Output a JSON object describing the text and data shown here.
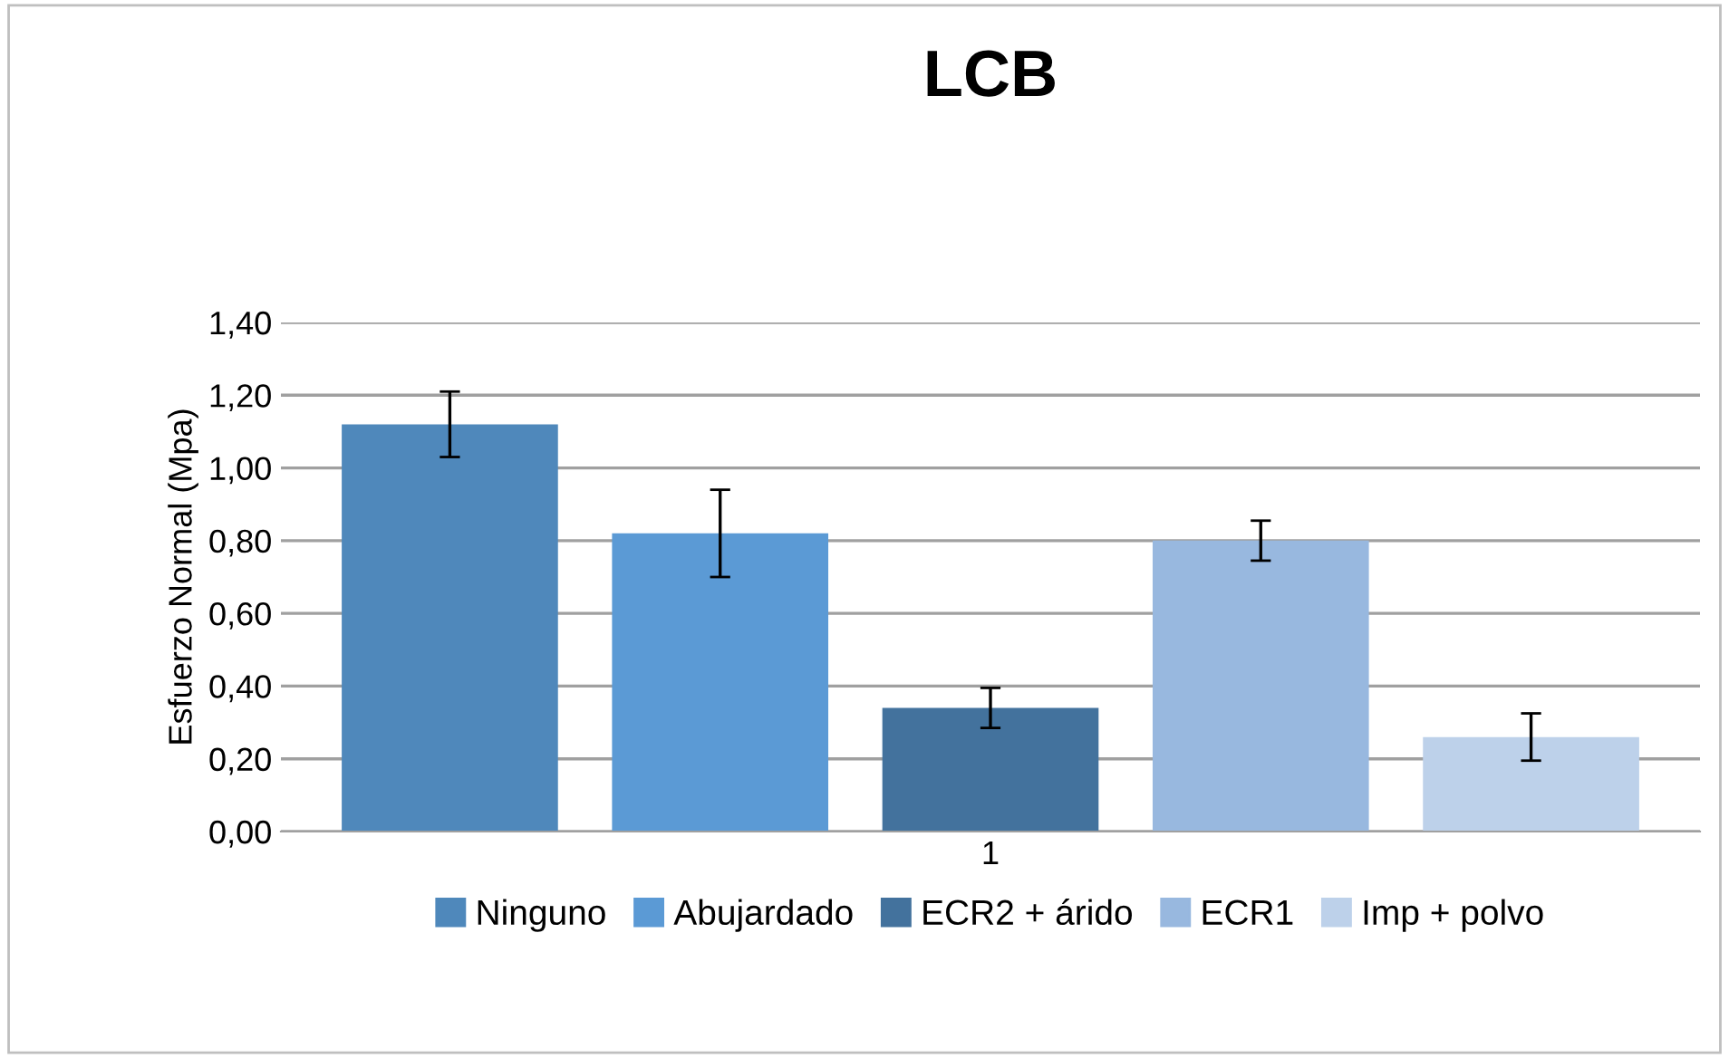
{
  "chart_data": {
    "type": "bar",
    "title": "LCB",
    "ylabel": "Esfuerzo Normal (Mpa)",
    "categories": [
      "1"
    ],
    "series": [
      {
        "name": "Ninguno",
        "color": "#4f88bb",
        "values": [
          1.12
        ],
        "errors": [
          0.09
        ]
      },
      {
        "name": "Abujardado",
        "color": "#5b9ad5",
        "values": [
          0.82
        ],
        "errors": [
          0.12
        ]
      },
      {
        "name": "ECR2 + árido",
        "color": "#43729d",
        "values": [
          0.34
        ],
        "errors": [
          0.055
        ]
      },
      {
        "name": "ECR1",
        "color": "#98b8df",
        "values": [
          0.8
        ],
        "errors": [
          0.055
        ]
      },
      {
        "name": "Imp + polvo",
        "color": "#bdd1ea",
        "values": [
          0.26
        ],
        "errors": [
          0.065
        ]
      }
    ],
    "ylim": [
      0,
      1.4
    ],
    "yticks": [
      {
        "value": 0,
        "label": "0,00"
      },
      {
        "value": 0.2,
        "label": "0,20"
      },
      {
        "value": 0.4,
        "label": "0,40"
      },
      {
        "value": 0.6,
        "label": "0,60"
      },
      {
        "value": 0.8,
        "label": "0,80"
      },
      {
        "value": 1.0,
        "label": "1,00"
      },
      {
        "value": 1.2,
        "label": "1,20"
      },
      {
        "value": 1.4,
        "label": "1,40"
      }
    ],
    "grid": "y",
    "legend": "bottom"
  }
}
